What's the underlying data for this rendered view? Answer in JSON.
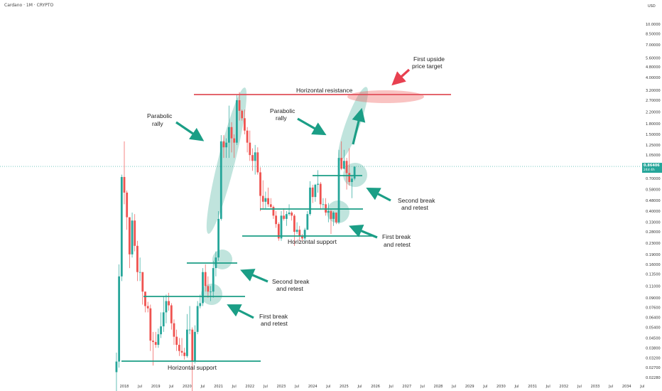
{
  "header": {
    "title": "Cardano · 1M · CRYPTO"
  },
  "currency_label": "USD",
  "price_badge": {
    "price": "0.86406",
    "countdown": "24d 4h"
  },
  "colors": {
    "up": "#26a69a",
    "down": "#ef5350",
    "teal": "#1b9e86",
    "red_line": "#e0505a",
    "arrow_red": "#e84050"
  },
  "chart_data": {
    "type": "candlestick",
    "title": "Cardano · 1M · CRYPTO",
    "yscale": "log",
    "ylim": [
      0.025,
      14
    ],
    "y_ticks": [
      "10.0000",
      "8.50000",
      "7.00000",
      "5.60000",
      "4.80000",
      "4.00000",
      "3.20000",
      "2.70000",
      "2.20000",
      "1.80000",
      "1.50000",
      "1.25000",
      "1.05000",
      "0.85000",
      "0.70000",
      "0.58000",
      "0.48000",
      "0.40000",
      "0.33000",
      "0.28000",
      "0.23000",
      "0.19000",
      "0.16000",
      "0.13500",
      "0.11000",
      "0.09000",
      "0.07600",
      "0.06400",
      "0.05400",
      "0.04500",
      "0.03800",
      "0.03200",
      "0.02700",
      "0.02280"
    ],
    "x_ticks": [
      "2018",
      "Jul",
      "2019",
      "Jul",
      "2020",
      "Jul",
      "2021",
      "Jul",
      "2022",
      "Jul",
      "2023",
      "Jul",
      "2024",
      "Jul",
      "2025",
      "Jul",
      "2026",
      "Jul",
      "2027",
      "Jul",
      "2028",
      "Jul",
      "2029",
      "Jul",
      "2030",
      "Jul",
      "2031",
      "Jul",
      "2032",
      "Jul",
      "2033",
      "Jul",
      "2034",
      "Jul"
    ],
    "candles": [
      {
        "d": "2017-10",
        "o": 0.025,
        "h": 0.035,
        "l": 0.018,
        "c": 0.03
      },
      {
        "d": "2017-11",
        "o": 0.03,
        "h": 0.16,
        "l": 0.027,
        "c": 0.13
      },
      {
        "d": "2017-12",
        "o": 0.13,
        "h": 0.75,
        "l": 0.12,
        "c": 0.72
      },
      {
        "d": "2018-01",
        "o": 0.72,
        "h": 1.33,
        "l": 0.45,
        "c": 0.55
      },
      {
        "d": "2018-02",
        "o": 0.55,
        "h": 0.57,
        "l": 0.29,
        "c": 0.36
      },
      {
        "d": "2018-03",
        "o": 0.36,
        "h": 0.36,
        "l": 0.15,
        "c": 0.19
      },
      {
        "d": "2018-04",
        "o": 0.19,
        "h": 0.39,
        "l": 0.18,
        "c": 0.34
      },
      {
        "d": "2018-05",
        "o": 0.34,
        "h": 0.38,
        "l": 0.2,
        "c": 0.22
      },
      {
        "d": "2018-06",
        "o": 0.22,
        "h": 0.24,
        "l": 0.12,
        "c": 0.14
      },
      {
        "d": "2018-07",
        "o": 0.14,
        "h": 0.18,
        "l": 0.12,
        "c": 0.14
      },
      {
        "d": "2018-08",
        "o": 0.14,
        "h": 0.14,
        "l": 0.08,
        "c": 0.1
      },
      {
        "d": "2018-09",
        "o": 0.1,
        "h": 0.1,
        "l": 0.07,
        "c": 0.078
      },
      {
        "d": "2018-10",
        "o": 0.078,
        "h": 0.084,
        "l": 0.07,
        "c": 0.075
      },
      {
        "d": "2018-11",
        "o": 0.075,
        "h": 0.08,
        "l": 0.036,
        "c": 0.043
      },
      {
        "d": "2018-12",
        "o": 0.043,
        "h": 0.05,
        "l": 0.028,
        "c": 0.042
      },
      {
        "d": "2019-01",
        "o": 0.042,
        "h": 0.05,
        "l": 0.038,
        "c": 0.04
      },
      {
        "d": "2019-02",
        "o": 0.04,
        "h": 0.053,
        "l": 0.038,
        "c": 0.048
      },
      {
        "d": "2019-03",
        "o": 0.048,
        "h": 0.07,
        "l": 0.045,
        "c": 0.055
      },
      {
        "d": "2019-04",
        "o": 0.055,
        "h": 0.093,
        "l": 0.05,
        "c": 0.07
      },
      {
        "d": "2019-05",
        "o": 0.07,
        "h": 0.095,
        "l": 0.058,
        "c": 0.085
      },
      {
        "d": "2019-06",
        "o": 0.085,
        "h": 0.098,
        "l": 0.072,
        "c": 0.079
      },
      {
        "d": "2019-07",
        "o": 0.079,
        "h": 0.082,
        "l": 0.052,
        "c": 0.058
      },
      {
        "d": "2019-08",
        "o": 0.058,
        "h": 0.062,
        "l": 0.04,
        "c": 0.046
      },
      {
        "d": "2019-09",
        "o": 0.046,
        "h": 0.052,
        "l": 0.036,
        "c": 0.04
      },
      {
        "d": "2019-10",
        "o": 0.04,
        "h": 0.045,
        "l": 0.033,
        "c": 0.036
      },
      {
        "d": "2019-11",
        "o": 0.036,
        "h": 0.045,
        "l": 0.033,
        "c": 0.035
      },
      {
        "d": "2019-12",
        "o": 0.035,
        "h": 0.038,
        "l": 0.031,
        "c": 0.033
      },
      {
        "d": "2020-01",
        "o": 0.033,
        "h": 0.068,
        "l": 0.032,
        "c": 0.052
      },
      {
        "d": "2020-02",
        "o": 0.052,
        "h": 0.078,
        "l": 0.048,
        "c": 0.052
      },
      {
        "d": "2020-03",
        "o": 0.052,
        "h": 0.054,
        "l": 0.018,
        "c": 0.03
      },
      {
        "d": "2020-04",
        "o": 0.03,
        "h": 0.056,
        "l": 0.029,
        "c": 0.05
      },
      {
        "d": "2020-05",
        "o": 0.05,
        "h": 0.085,
        "l": 0.048,
        "c": 0.078
      },
      {
        "d": "2020-06",
        "o": 0.078,
        "h": 0.095,
        "l": 0.075,
        "c": 0.082
      },
      {
        "d": "2020-07",
        "o": 0.082,
        "h": 0.15,
        "l": 0.078,
        "c": 0.14
      },
      {
        "d": "2020-08",
        "o": 0.14,
        "h": 0.16,
        "l": 0.1,
        "c": 0.11
      },
      {
        "d": "2020-09",
        "o": 0.11,
        "h": 0.13,
        "l": 0.09,
        "c": 0.1
      },
      {
        "d": "2020-10",
        "o": 0.1,
        "h": 0.11,
        "l": 0.085,
        "c": 0.1
      },
      {
        "d": "2020-11",
        "o": 0.1,
        "h": 0.17,
        "l": 0.09,
        "c": 0.15
      },
      {
        "d": "2020-12",
        "o": 0.15,
        "h": 0.2,
        "l": 0.13,
        "c": 0.18
      },
      {
        "d": "2021-01",
        "o": 0.18,
        "h": 0.4,
        "l": 0.17,
        "c": 0.35
      },
      {
        "d": "2021-02",
        "o": 0.35,
        "h": 1.48,
        "l": 0.34,
        "c": 1.33
      },
      {
        "d": "2021-03",
        "o": 1.33,
        "h": 1.48,
        "l": 1.0,
        "c": 1.2
      },
      {
        "d": "2021-04",
        "o": 1.2,
        "h": 1.4,
        "l": 1.0,
        "c": 1.3
      },
      {
        "d": "2021-05",
        "o": 1.3,
        "h": 2.46,
        "l": 1.0,
        "c": 1.7
      },
      {
        "d": "2021-06",
        "o": 1.7,
        "h": 1.85,
        "l": 1.1,
        "c": 1.4
      },
      {
        "d": "2021-07",
        "o": 1.4,
        "h": 1.5,
        "l": 1.0,
        "c": 1.3
      },
      {
        "d": "2021-08",
        "o": 1.3,
        "h": 2.95,
        "l": 1.25,
        "c": 2.7
      },
      {
        "d": "2021-09",
        "o": 2.7,
        "h": 3.1,
        "l": 1.9,
        "c": 2.25
      },
      {
        "d": "2021-10",
        "o": 2.25,
        "h": 2.3,
        "l": 1.9,
        "c": 1.98
      },
      {
        "d": "2021-11",
        "o": 1.98,
        "h": 2.3,
        "l": 1.5,
        "c": 1.6
      },
      {
        "d": "2021-12",
        "o": 1.6,
        "h": 1.7,
        "l": 1.1,
        "c": 1.3
      },
      {
        "d": "2022-01",
        "o": 1.3,
        "h": 1.6,
        "l": 0.95,
        "c": 1.05
      },
      {
        "d": "2022-02",
        "o": 1.05,
        "h": 1.18,
        "l": 0.8,
        "c": 0.95
      },
      {
        "d": "2022-03",
        "o": 0.95,
        "h": 1.25,
        "l": 0.75,
        "c": 1.1
      },
      {
        "d": "2022-04",
        "o": 1.1,
        "h": 1.2,
        "l": 0.75,
        "c": 0.78
      },
      {
        "d": "2022-05",
        "o": 0.78,
        "h": 0.85,
        "l": 0.4,
        "c": 0.52
      },
      {
        "d": "2022-06",
        "o": 0.52,
        "h": 0.68,
        "l": 0.42,
        "c": 0.47
      },
      {
        "d": "2022-07",
        "o": 0.47,
        "h": 0.56,
        "l": 0.42,
        "c": 0.5
      },
      {
        "d": "2022-08",
        "o": 0.5,
        "h": 0.6,
        "l": 0.43,
        "c": 0.45
      },
      {
        "d": "2022-09",
        "o": 0.45,
        "h": 0.5,
        "l": 0.42,
        "c": 0.43
      },
      {
        "d": "2022-10",
        "o": 0.43,
        "h": 0.44,
        "l": 0.35,
        "c": 0.37
      },
      {
        "d": "2022-11",
        "o": 0.37,
        "h": 0.4,
        "l": 0.3,
        "c": 0.32
      },
      {
        "d": "2022-12",
        "o": 0.32,
        "h": 0.33,
        "l": 0.24,
        "c": 0.25
      },
      {
        "d": "2023-01",
        "o": 0.25,
        "h": 0.4,
        "l": 0.24,
        "c": 0.37
      },
      {
        "d": "2023-02",
        "o": 0.37,
        "h": 0.42,
        "l": 0.34,
        "c": 0.35
      },
      {
        "d": "2023-03",
        "o": 0.35,
        "h": 0.4,
        "l": 0.31,
        "c": 0.38
      },
      {
        "d": "2023-04",
        "o": 0.38,
        "h": 0.45,
        "l": 0.37,
        "c": 0.39
      },
      {
        "d": "2023-05",
        "o": 0.39,
        "h": 0.4,
        "l": 0.34,
        "c": 0.37
      },
      {
        "d": "2023-06",
        "o": 0.37,
        "h": 0.38,
        "l": 0.22,
        "c": 0.28
      },
      {
        "d": "2023-07",
        "o": 0.28,
        "h": 0.33,
        "l": 0.27,
        "c": 0.29
      },
      {
        "d": "2023-08",
        "o": 0.29,
        "h": 0.31,
        "l": 0.24,
        "c": 0.26
      },
      {
        "d": "2023-09",
        "o": 0.26,
        "h": 0.27,
        "l": 0.24,
        "c": 0.25
      },
      {
        "d": "2023-10",
        "o": 0.25,
        "h": 0.3,
        "l": 0.24,
        "c": 0.29
      },
      {
        "d": "2023-11",
        "o": 0.29,
        "h": 0.4,
        "l": 0.29,
        "c": 0.38
      },
      {
        "d": "2023-12",
        "o": 0.38,
        "h": 0.67,
        "l": 0.37,
        "c": 0.6
      },
      {
        "d": "2024-01",
        "o": 0.6,
        "h": 0.63,
        "l": 0.46,
        "c": 0.51
      },
      {
        "d": "2024-02",
        "o": 0.51,
        "h": 0.64,
        "l": 0.47,
        "c": 0.63
      },
      {
        "d": "2024-03",
        "o": 0.63,
        "h": 0.81,
        "l": 0.55,
        "c": 0.64
      },
      {
        "d": "2024-04",
        "o": 0.64,
        "h": 0.66,
        "l": 0.41,
        "c": 0.45
      },
      {
        "d": "2024-05",
        "o": 0.45,
        "h": 0.5,
        "l": 0.42,
        "c": 0.45
      },
      {
        "d": "2024-06",
        "o": 0.45,
        "h": 0.5,
        "l": 0.37,
        "c": 0.39
      },
      {
        "d": "2024-07",
        "o": 0.39,
        "h": 0.46,
        "l": 0.33,
        "c": 0.4
      },
      {
        "d": "2024-08",
        "o": 0.4,
        "h": 0.41,
        "l": 0.27,
        "c": 0.35
      },
      {
        "d": "2024-09",
        "o": 0.35,
        "h": 0.4,
        "l": 0.31,
        "c": 0.39
      },
      {
        "d": "2024-10",
        "o": 0.39,
        "h": 0.39,
        "l": 0.32,
        "c": 0.33
      },
      {
        "d": "2024-11",
        "o": 0.33,
        "h": 1.15,
        "l": 0.32,
        "c": 1.0
      },
      {
        "d": "2024-12",
        "o": 1.0,
        "h": 1.33,
        "l": 0.81,
        "c": 0.83
      },
      {
        "d": "2025-01",
        "o": 0.83,
        "h": 1.15,
        "l": 0.82,
        "c": 0.95
      },
      {
        "d": "2025-02",
        "o": 0.95,
        "h": 1.0,
        "l": 0.58,
        "c": 0.77
      },
      {
        "d": "2025-03",
        "o": 0.77,
        "h": 1.18,
        "l": 0.62,
        "c": 0.66
      },
      {
        "d": "2025-04",
        "o": 0.66,
        "h": 0.74,
        "l": 0.5,
        "c": 0.7
      },
      {
        "d": "2025-05",
        "o": 0.7,
        "h": 0.86,
        "l": 0.68,
        "c": 0.86
      }
    ],
    "levels": [
      {
        "name": "Horizontal resistance",
        "price": 2.6
      },
      {
        "name": "Horizontal support",
        "price": 0.24
      },
      {
        "name": "Horizontal support",
        "price": 0.029
      }
    ]
  },
  "annotations": {
    "horizontal_resistance": "Horizontal resistance",
    "horizontal_support_top": "Horizontal support",
    "horizontal_support_bottom": "Horizontal support",
    "first_upside_l1": "First upside",
    "first_upside_l2": "price target",
    "parabolic1_l1": "Parabolic",
    "parabolic1_l2": "rally",
    "parabolic2_l1": "Parabolic",
    "parabolic2_l2": "rally",
    "second_break_right_l1": "Second break",
    "second_break_right_l2": "and retest",
    "first_break_right_l1": "First break",
    "first_break_right_l2": "and retest",
    "second_break_left_l1": "Second break",
    "second_break_left_l2": "and retest",
    "first_break_left_l1": "First break",
    "first_break_left_l2": "and retest"
  }
}
